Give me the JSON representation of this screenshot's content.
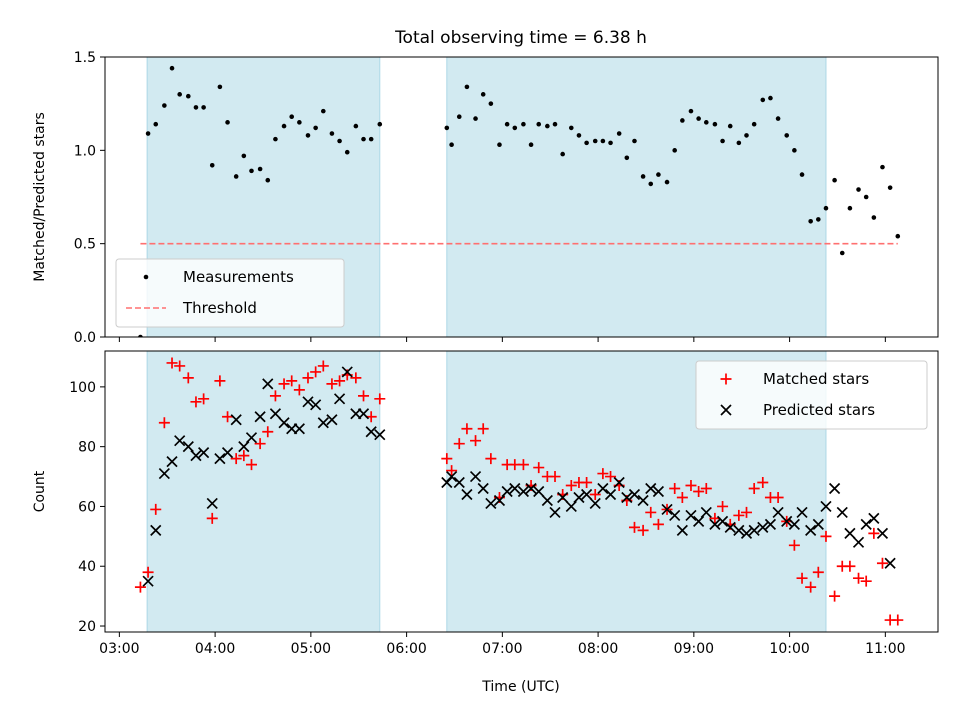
{
  "figure": {
    "title": "Total observing time = 6.38 h",
    "xlabel": "Time (UTC)",
    "x_tick_labels": [
      "03:00",
      "04:00",
      "05:00",
      "06:00",
      "07:00",
      "08:00",
      "09:00",
      "10:00",
      "11:00"
    ]
  },
  "chart_data": [
    {
      "type": "scatter",
      "ylabel": "Matched/Predicted stars",
      "xlim": [
        2.85,
        11.55
      ],
      "ylim": [
        0.0,
        1.5
      ],
      "y_ticks": [
        0.0,
        0.5,
        1.0,
        1.5
      ],
      "y_tick_labels": [
        "0.0",
        "0.5",
        "1.0",
        "1.5"
      ],
      "shaded_intervals": [
        [
          3.29,
          5.72
        ],
        [
          6.42,
          10.38
        ]
      ],
      "shade_color": "#add8e6",
      "legend": {
        "placement": "lower-left",
        "entries": [
          {
            "label": "Measurements",
            "marker": "dot",
            "color": "#000000"
          },
          {
            "label": "Threshold",
            "marker": "dashed-line",
            "color": "#ff7070"
          }
        ]
      },
      "series": [
        {
          "name": "Measurements",
          "marker": "dot",
          "color": "#000000",
          "x": [
            3.22,
            3.3,
            3.38,
            3.47,
            3.55,
            3.63,
            3.72,
            3.8,
            3.88,
            3.97,
            4.05,
            4.13,
            4.22,
            4.3,
            4.38,
            4.47,
            4.55,
            4.63,
            4.72,
            4.8,
            4.88,
            4.97,
            5.05,
            5.13,
            5.22,
            5.3,
            5.38,
            5.47,
            5.55,
            5.63,
            5.72,
            6.42,
            6.47,
            6.55,
            6.63,
            6.72,
            6.8,
            6.88,
            6.97,
            7.05,
            7.13,
            7.22,
            7.3,
            7.38,
            7.47,
            7.55,
            7.63,
            7.72,
            7.8,
            7.88,
            7.97,
            8.05,
            8.13,
            8.22,
            8.3,
            8.38,
            8.47,
            8.55,
            8.63,
            8.72,
            8.8,
            8.88,
            8.97,
            9.05,
            9.13,
            9.22,
            9.3,
            9.38,
            9.47,
            9.55,
            9.63,
            9.72,
            9.8,
            9.88,
            9.97,
            10.05,
            10.13,
            10.22,
            10.3,
            10.38,
            10.47,
            10.55,
            10.63,
            10.72,
            10.8,
            10.88,
            10.97,
            11.05,
            11.13
          ],
          "y": [
            0.0,
            1.09,
            1.14,
            1.24,
            1.44,
            1.3,
            1.29,
            1.23,
            1.23,
            0.92,
            1.34,
            1.15,
            0.86,
            0.97,
            0.89,
            0.9,
            0.84,
            1.06,
            1.13,
            1.18,
            1.15,
            1.08,
            1.12,
            1.21,
            1.09,
            1.05,
            0.99,
            1.13,
            1.06,
            1.06,
            1.14,
            1.12,
            1.03,
            1.18,
            1.34,
            1.17,
            1.3,
            1.25,
            1.03,
            1.14,
            1.12,
            1.14,
            1.03,
            1.14,
            1.13,
            1.14,
            0.98,
            1.12,
            1.08,
            1.04,
            1.05,
            1.05,
            1.04,
            1.09,
            0.96,
            1.05,
            0.86,
            0.82,
            0.87,
            0.83,
            1.0,
            1.16,
            1.21,
            1.17,
            1.15,
            1.14,
            1.05,
            1.13,
            1.04,
            1.08,
            1.14,
            1.27,
            1.28,
            1.17,
            1.08,
            1.0,
            0.87,
            0.62,
            0.63,
            0.69,
            0.84,
            0.45,
            0.69,
            0.79,
            0.75,
            0.64,
            0.91,
            0.8,
            0.54
          ]
        },
        {
          "name": "Threshold",
          "marker": "dashed-line",
          "color": "#ff7070",
          "x": [
            3.22,
            11.13
          ],
          "y": [
            0.5,
            0.5
          ]
        }
      ]
    },
    {
      "type": "scatter",
      "ylabel": "Count",
      "xlim": [
        2.85,
        11.55
      ],
      "ylim": [
        18,
        112
      ],
      "y_ticks": [
        20,
        40,
        60,
        80,
        100
      ],
      "y_tick_labels": [
        "20",
        "40",
        "60",
        "80",
        "100"
      ],
      "shaded_intervals": [
        [
          3.29,
          5.72
        ],
        [
          6.42,
          10.38
        ]
      ],
      "shade_color": "#add8e6",
      "legend": {
        "placement": "upper-right",
        "entries": [
          {
            "label": "Matched stars",
            "marker": "plus",
            "color": "#ff0000"
          },
          {
            "label": "Predicted stars",
            "marker": "x",
            "color": "#000000"
          }
        ]
      },
      "series": [
        {
          "name": "Matched stars",
          "marker": "plus",
          "color": "#ff0000",
          "x": [
            3.22,
            3.3,
            3.38,
            3.47,
            3.55,
            3.63,
            3.72,
            3.8,
            3.88,
            3.97,
            4.05,
            4.13,
            4.22,
            4.3,
            4.38,
            4.47,
            4.55,
            4.63,
            4.72,
            4.8,
            4.88,
            4.97,
            5.05,
            5.13,
            5.22,
            5.3,
            5.38,
            5.47,
            5.55,
            5.63,
            5.72,
            6.42,
            6.47,
            6.55,
            6.63,
            6.72,
            6.8,
            6.88,
            6.97,
            7.05,
            7.13,
            7.22,
            7.3,
            7.38,
            7.47,
            7.55,
            7.63,
            7.72,
            7.8,
            7.88,
            7.97,
            8.05,
            8.13,
            8.22,
            8.3,
            8.38,
            8.47,
            8.55,
            8.63,
            8.72,
            8.8,
            8.88,
            8.97,
            9.05,
            9.13,
            9.22,
            9.3,
            9.38,
            9.47,
            9.55,
            9.63,
            9.72,
            9.8,
            9.88,
            9.97,
            10.05,
            10.13,
            10.22,
            10.3,
            10.38,
            10.47,
            10.55,
            10.63,
            10.72,
            10.8,
            10.88,
            10.97,
            11.05,
            11.13
          ],
          "y": [
            33,
            38,
            59,
            88,
            108,
            107,
            103,
            95,
            96,
            56,
            102,
            90,
            76,
            77,
            74,
            81,
            85,
            97,
            101,
            102,
            99,
            103,
            105,
            107,
            101,
            102,
            104,
            103,
            97,
            90,
            96,
            76,
            72,
            81,
            86,
            82,
            86,
            76,
            63,
            74,
            74,
            74,
            67,
            73,
            70,
            70,
            64,
            67,
            68,
            68,
            64,
            71,
            70,
            67,
            62,
            53,
            52,
            58,
            54,
            59,
            66,
            63,
            67,
            65,
            66,
            56,
            60,
            54,
            57,
            58,
            66,
            68,
            63,
            63,
            55,
            47,
            36,
            33,
            38,
            50,
            30,
            40,
            40,
            36,
            35,
            51,
            41,
            22,
            22
          ]
        },
        {
          "name": "Predicted stars",
          "marker": "x",
          "color": "#000000",
          "x": [
            3.3,
            3.38,
            3.47,
            3.55,
            3.63,
            3.72,
            3.8,
            3.88,
            3.97,
            4.05,
            4.13,
            4.22,
            4.3,
            4.38,
            4.47,
            4.55,
            4.63,
            4.72,
            4.8,
            4.88,
            4.97,
            5.05,
            5.13,
            5.22,
            5.3,
            5.38,
            5.47,
            5.55,
            5.63,
            5.72,
            6.42,
            6.47,
            6.55,
            6.63,
            6.72,
            6.8,
            6.88,
            6.97,
            7.05,
            7.13,
            7.22,
            7.3,
            7.38,
            7.47,
            7.55,
            7.63,
            7.72,
            7.8,
            7.88,
            7.97,
            8.05,
            8.13,
            8.22,
            8.3,
            8.38,
            8.47,
            8.55,
            8.63,
            8.72,
            8.8,
            8.88,
            8.97,
            9.05,
            9.13,
            9.22,
            9.3,
            9.38,
            9.47,
            9.55,
            9.63,
            9.72,
            9.8,
            9.88,
            9.97,
            10.05,
            10.13,
            10.22,
            10.3,
            10.38,
            10.47,
            10.55,
            10.63,
            10.72,
            10.8,
            10.88,
            10.97,
            11.05
          ],
          "y": [
            35,
            52,
            71,
            75,
            82,
            80,
            77,
            78,
            61,
            76,
            78,
            89,
            80,
            83,
            90,
            101,
            91,
            88,
            86,
            86,
            95,
            94,
            88,
            89,
            96,
            105,
            91,
            91,
            85,
            84,
            68,
            70,
            68,
            64,
            70,
            66,
            61,
            62,
            65,
            66,
            65,
            66,
            65,
            62,
            58,
            63,
            60,
            63,
            64,
            61,
            66,
            64,
            68,
            63,
            64,
            62,
            66,
            65,
            59,
            57,
            52,
            57,
            55,
            58,
            54,
            55,
            53,
            52,
            51,
            52,
            53,
            54,
            58,
            55,
            54,
            58,
            52,
            54,
            60,
            66,
            58,
            51,
            48,
            54,
            56,
            51,
            41
          ]
        }
      ]
    }
  ]
}
